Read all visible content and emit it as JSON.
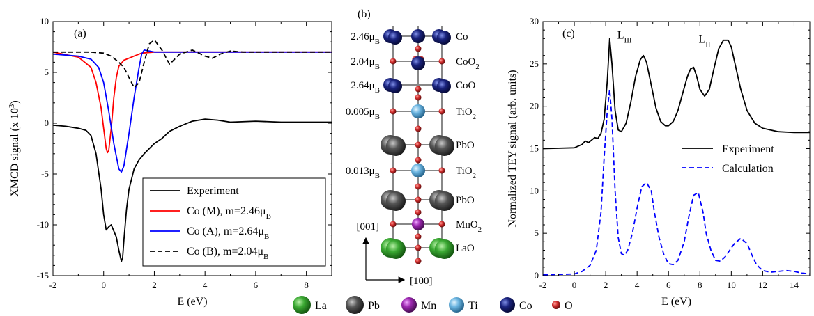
{
  "chart_data": [
    {
      "type": "line",
      "panel_label": "(a)",
      "xlabel": "E (eV)",
      "ylabel": "XMCD signal (x 10^3)",
      "ylabel_main": "XMCD signal (x 10",
      "ylabel_exp": "3",
      "ylabel_end": ")",
      "xlim": [
        -2,
        9
      ],
      "ylim": [
        -15,
        10
      ],
      "xticks": [
        -2,
        0,
        2,
        4,
        6,
        8
      ],
      "yticks": [
        -15,
        -10,
        -5,
        0,
        5,
        10
      ],
      "grid": false,
      "legend_position": "bottom-right",
      "series": [
        {
          "name": "Experiment",
          "color": "#000000",
          "dash": "solid",
          "x": [
            -2.0,
            -1.5,
            -1.0,
            -0.7,
            -0.5,
            -0.3,
            -0.1,
            0.0,
            0.1,
            0.2,
            0.3,
            0.4,
            0.5,
            0.6,
            0.7,
            0.75,
            0.8,
            0.9,
            1.0,
            1.2,
            1.4,
            1.6,
            1.8,
            2.0,
            2.3,
            2.6,
            3.0,
            3.5,
            4.0,
            4.5,
            5.0,
            6.0,
            7.0,
            8.0,
            9.0
          ],
          "y": [
            -0.2,
            -0.3,
            -0.5,
            -0.7,
            -1.2,
            -3.0,
            -6.5,
            -9.0,
            -10.5,
            -10.2,
            -10.0,
            -10.6,
            -11.2,
            -12.5,
            -13.6,
            -13.2,
            -11.5,
            -8.5,
            -6.5,
            -4.5,
            -3.6,
            -3.0,
            -2.5,
            -2.0,
            -1.5,
            -0.8,
            -0.3,
            0.2,
            0.4,
            0.3,
            0.1,
            0.2,
            0.1,
            0.1,
            0.1
          ]
        },
        {
          "name": "Co (M), m=2.46μ",
          "color": "#ff0000",
          "dash": "solid",
          "x": [
            -2.0,
            -1.0,
            -0.5,
            -0.3,
            -0.1,
            0.0,
            0.1,
            0.15,
            0.2,
            0.3,
            0.4,
            0.5,
            0.6,
            0.8,
            1.0,
            1.2,
            1.5,
            2.0,
            3.0,
            4.0,
            6.0,
            9.0
          ],
          "y": [
            7.0,
            6.5,
            5.5,
            4.0,
            1.5,
            -0.5,
            -2.5,
            -2.9,
            -2.7,
            -0.5,
            2.5,
            4.5,
            5.6,
            6.2,
            6.4,
            6.6,
            6.9,
            7.0,
            7.0,
            7.0,
            7.0,
            7.0
          ]
        },
        {
          "name": "Co (A), m=2.64μ",
          "color": "#0000ff",
          "dash": "solid",
          "x": [
            -2.0,
            -1.0,
            -0.5,
            -0.2,
            0.0,
            0.2,
            0.4,
            0.6,
            0.7,
            0.8,
            1.0,
            1.2,
            1.4,
            1.5,
            1.6,
            1.8,
            2.0,
            3.0,
            9.0
          ],
          "y": [
            6.8,
            6.6,
            6.3,
            5.5,
            4.0,
            1.2,
            -2.0,
            -4.5,
            -4.8,
            -4.2,
            -1.0,
            2.5,
            5.5,
            6.8,
            7.2,
            7.1,
            7.0,
            7.0,
            7.0
          ]
        },
        {
          "name": "Co (B), m=2.04μ",
          "color": "#000000",
          "dash": "dashed",
          "x": [
            -2.0,
            -0.5,
            0.0,
            0.3,
            0.6,
            0.8,
            1.0,
            1.2,
            1.4,
            1.6,
            1.8,
            2.0,
            2.3,
            2.6,
            3.0,
            3.5,
            4.0,
            4.3,
            4.6,
            5.0,
            5.5,
            6.0,
            7.0,
            9.0
          ],
          "y": [
            7.0,
            7.0,
            6.9,
            6.6,
            6.0,
            5.5,
            4.5,
            3.5,
            4.0,
            6.0,
            7.8,
            8.2,
            7.2,
            5.8,
            6.8,
            7.2,
            6.6,
            6.4,
            6.8,
            7.1,
            7.0,
            7.0,
            7.0,
            7.0
          ]
        }
      ]
    },
    {
      "type": "line",
      "panel_label": "(c)",
      "xlabel": "E (eV)",
      "ylabel": "Normalized TEY signal (arb. units)",
      "xlim": [
        -2,
        15
      ],
      "ylim": [
        0,
        30
      ],
      "xticks": [
        -2,
        0,
        2,
        4,
        6,
        8,
        10,
        12,
        14
      ],
      "yticks": [
        0,
        5,
        10,
        15,
        20,
        25,
        30
      ],
      "grid": false,
      "legend_position": "right",
      "annotations": [
        {
          "main": "L",
          "sub": "III",
          "x": 3.2,
          "y": 28.0
        },
        {
          "main": "L",
          "sub": "II",
          "x": 8.3,
          "y": 27.5
        }
      ],
      "series": [
        {
          "name": "Experiment",
          "color": "#000000",
          "dash": "solid",
          "x": [
            -2.0,
            0.0,
            0.5,
            0.7,
            0.9,
            1.1,
            1.3,
            1.5,
            1.7,
            1.9,
            2.1,
            2.25,
            2.4,
            2.6,
            2.8,
            3.0,
            3.3,
            3.6,
            3.9,
            4.2,
            4.4,
            4.6,
            4.9,
            5.2,
            5.5,
            5.8,
            6.0,
            6.3,
            6.6,
            6.9,
            7.2,
            7.4,
            7.6,
            7.8,
            8.0,
            8.3,
            8.6,
            8.9,
            9.2,
            9.5,
            9.8,
            10.0,
            10.3,
            10.6,
            11.0,
            11.5,
            12.0,
            13.0,
            14.0,
            15.0
          ],
          "y": [
            15.0,
            15.1,
            15.5,
            15.9,
            15.7,
            16.0,
            16.3,
            16.2,
            16.8,
            18.5,
            23.0,
            28.0,
            25.0,
            19.5,
            17.2,
            17.0,
            18.0,
            20.5,
            23.5,
            25.5,
            26.0,
            25.2,
            22.5,
            19.8,
            18.2,
            17.7,
            17.7,
            18.2,
            19.5,
            21.5,
            23.5,
            24.4,
            24.6,
            23.5,
            22.0,
            21.2,
            22.0,
            24.5,
            26.8,
            27.8,
            27.8,
            27.0,
            24.5,
            22.0,
            19.5,
            18.0,
            17.4,
            17.0,
            16.9,
            16.9
          ]
        },
        {
          "name": "Calculation",
          "color": "#0000ff",
          "dash": "dashed",
          "x": [
            -2.0,
            0.0,
            0.5,
            1.0,
            1.4,
            1.7,
            1.9,
            2.1,
            2.25,
            2.4,
            2.6,
            2.8,
            3.0,
            3.2,
            3.4,
            3.7,
            4.0,
            4.3,
            4.6,
            4.9,
            5.1,
            5.4,
            5.7,
            6.0,
            6.3,
            6.6,
            7.0,
            7.3,
            7.6,
            7.9,
            8.2,
            8.4,
            8.7,
            9.0,
            9.3,
            9.6,
            9.9,
            10.2,
            10.6,
            11.0,
            11.3,
            11.6,
            12.0,
            12.5,
            13.0,
            13.5,
            14.0,
            14.5,
            15.0
          ],
          "y": [
            0.1,
            0.2,
            0.5,
            1.2,
            3.0,
            7.5,
            14.0,
            19.5,
            22.0,
            18.5,
            10.0,
            4.5,
            2.6,
            2.4,
            3.0,
            5.0,
            8.0,
            10.5,
            11.0,
            10.0,
            7.5,
            4.5,
            2.5,
            1.4,
            1.3,
            1.8,
            4.0,
            7.0,
            9.5,
            9.8,
            7.5,
            5.0,
            3.0,
            1.8,
            1.7,
            2.2,
            3.0,
            3.8,
            4.4,
            3.8,
            2.5,
            1.3,
            0.6,
            0.4,
            0.5,
            0.6,
            0.5,
            0.3,
            0.2
          ]
        }
      ]
    }
  ],
  "structure": {
    "panel_label": "(b)",
    "moment_unit": "μ",
    "moment_sub": "B",
    "layers": [
      {
        "moment": "2.46",
        "formula": "Co",
        "formula_sub": "",
        "atom": "Co"
      },
      {
        "moment": "2.04",
        "formula": "CoO",
        "formula_sub": "2",
        "atom": "O"
      },
      {
        "moment": "2.64",
        "formula": "CoO",
        "formula_sub": "",
        "atom": "Co"
      },
      {
        "moment": "0.005",
        "formula": "TiO",
        "formula_sub": "2",
        "atom": "O"
      },
      {
        "moment": "",
        "formula": "PbO",
        "formula_sub": "",
        "atom": "Pb"
      },
      {
        "moment": "0.013",
        "formula": "TiO",
        "formula_sub": "2",
        "atom": "O"
      },
      {
        "moment": "",
        "formula": "PbO",
        "formula_sub": "",
        "atom": "Pb"
      },
      {
        "moment": "",
        "formula": "MnO",
        "formula_sub": "2",
        "atom": "O"
      },
      {
        "moment": "",
        "formula": "LaO",
        "formula_sub": "",
        "atom": "La"
      }
    ],
    "axis_vertical": "[001]",
    "axis_horizontal": "[100]"
  },
  "atom_legend": [
    {
      "label": "La",
      "color": "#3aa832"
    },
    {
      "label": "Pb",
      "color": "#555555"
    },
    {
      "label": "Mn",
      "color": "#9c27b0"
    },
    {
      "label": "Ti",
      "color": "#6ab4e0"
    },
    {
      "label": "Co",
      "color": "#1a237e"
    },
    {
      "label": "O",
      "color": "#d32f2f"
    }
  ]
}
